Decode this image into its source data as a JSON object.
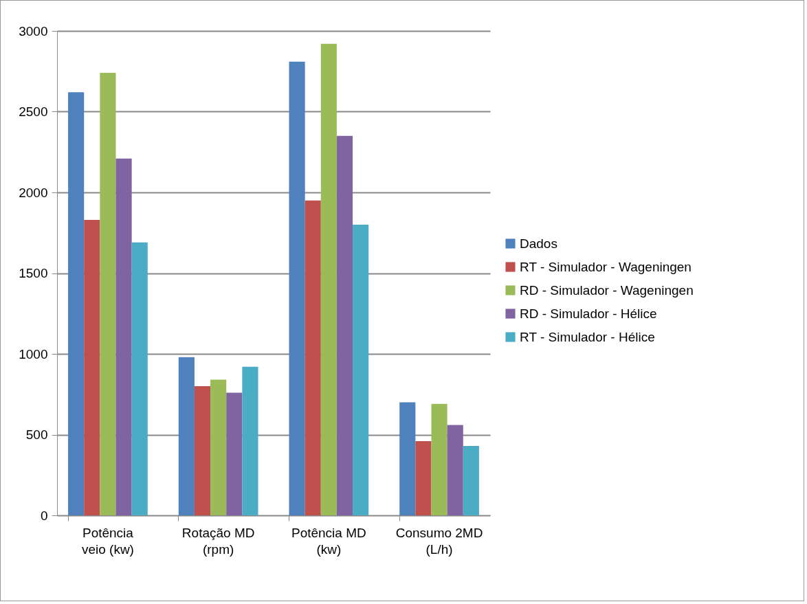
{
  "chart_data": {
    "type": "bar",
    "categories": [
      "Potência veio (kw)",
      "Rotação MD (rpm)",
      "Potência MD (kw)",
      "Consumo 2MD (L/h)"
    ],
    "series": [
      {
        "name": "Dados",
        "color": "#4f81bd",
        "values": [
          2620,
          980,
          2810,
          700
        ]
      },
      {
        "name": "RT - Simulador - Wageningen",
        "color": "#c0504d",
        "values": [
          1830,
          800,
          1950,
          460
        ]
      },
      {
        "name": "RD - Simulador - Wageningen",
        "color": "#9bbb59",
        "values": [
          2740,
          840,
          2920,
          690
        ]
      },
      {
        "name": "RD - Simulador - Hélice",
        "color": "#8064a2",
        "values": [
          2210,
          760,
          2350,
          560
        ]
      },
      {
        "name": "RT - Simulador - Hélice",
        "color": "#4bacc6",
        "values": [
          1690,
          920,
          1800,
          430
        ]
      }
    ],
    "ylim": [
      0,
      3000
    ],
    "yticks": [
      0,
      500,
      1000,
      1500,
      2000,
      2500,
      3000
    ],
    "grid": "y",
    "legend": "right"
  }
}
